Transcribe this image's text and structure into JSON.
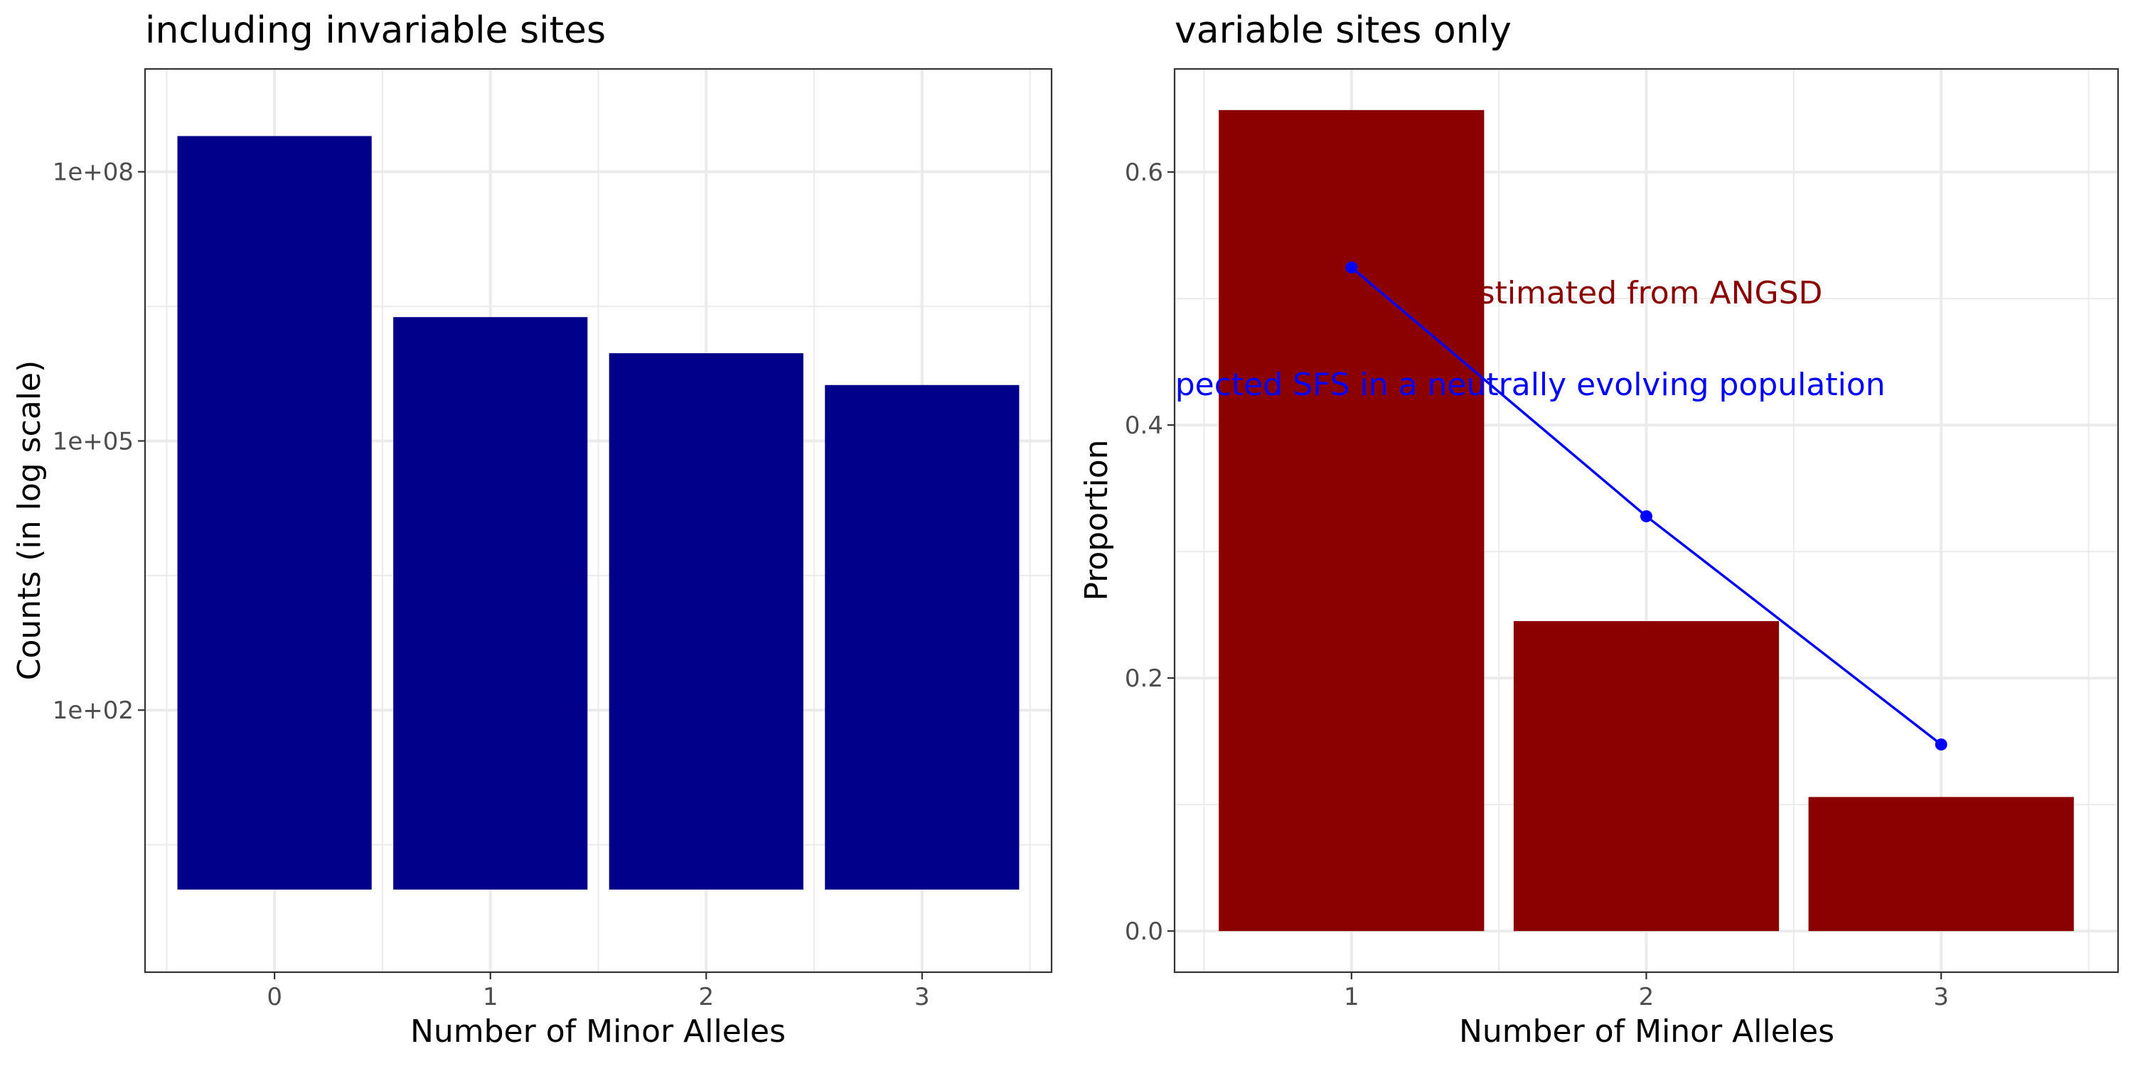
{
  "chart_data": [
    {
      "type": "bar",
      "title": "including invariable sites",
      "xlabel": "Number of Minor Alleles",
      "ylabel": "Counts (in log scale)",
      "yscale": "log10",
      "categories": [
        "0",
        "1",
        "2",
        "3"
      ],
      "values": [
        250000000,
        2400000,
        950000,
        420000
      ],
      "bar_color": "#00008B",
      "ylim": [
        0.12,
        1400000000
      ],
      "yticks": [
        100,
        100000,
        100000000
      ],
      "ytick_labels": [
        "1e+02",
        "1e+05",
        "1e+08"
      ],
      "grid": true
    },
    {
      "type": "bar",
      "title": "variable sites only",
      "xlabel": "Number of Minor Alleles",
      "ylabel": "Proportion",
      "categories": [
        "1",
        "2",
        "3"
      ],
      "values": [
        0.649,
        0.245,
        0.106
      ],
      "bar_color": "#8B0000",
      "line_series": {
        "x": [
          "1",
          "2",
          "3"
        ],
        "values": [
          0.5246,
          0.3279,
          0.1475
        ],
        "color": "#0000FF"
      },
      "annotations": [
        {
          "text": "estimated from ANGSD",
          "color": "#8B0000"
        },
        {
          "text": "expected SFS in a neutrally evolving population",
          "color": "#0000FF"
        }
      ],
      "ylim": [
        -0.0325,
        0.6815
      ],
      "yticks": [
        0.0,
        0.2,
        0.4,
        0.6
      ],
      "ytick_labels": [
        "0.0",
        "0.2",
        "0.4",
        "0.6"
      ],
      "grid": true
    }
  ]
}
